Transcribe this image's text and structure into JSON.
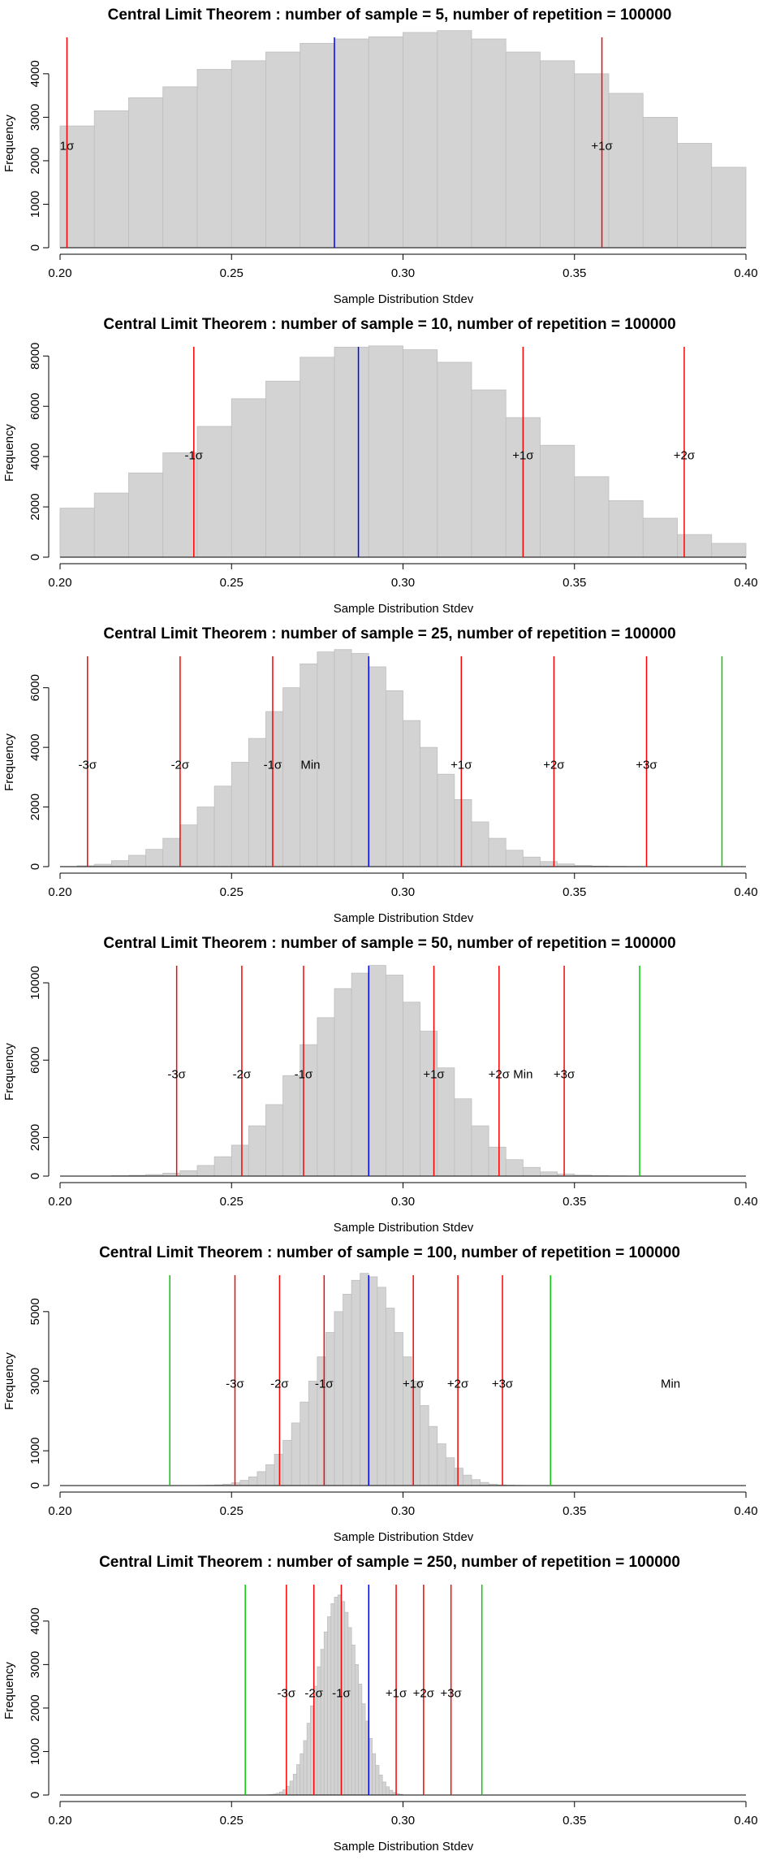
{
  "chart_data": [
    {
      "type": "bar",
      "title": "Central Limit Theorem : number of sample = 5, number of repetition = 100000",
      "xlabel": "Sample Distribution Stdev",
      "ylabel": "Frequency",
      "xlim": [
        0.2,
        0.4
      ],
      "ylim": [
        0,
        4800
      ],
      "x_ticks": [
        "0.20",
        "0.25",
        "0.30",
        "0.35",
        "0.40"
      ],
      "y_ticks": [
        "0",
        "1000",
        "2000",
        "3000",
        "4000"
      ],
      "bin_start": 0.2,
      "bin_width": 0.01,
      "values": [
        2800,
        3150,
        3450,
        3700,
        4100,
        4300,
        4500,
        4700,
        4800,
        4850,
        4950,
        5000,
        4800,
        4500,
        4300,
        4000,
        3550,
        3000,
        2400,
        1850
      ],
      "mean": 0.28,
      "sigma_lines": [
        {
          "x": 0.202,
          "label": "1σ"
        },
        {
          "x": 0.358,
          "label": "+1σ"
        }
      ],
      "limit_lines": [],
      "min_label": null,
      "colors": {
        "bars": "#d3d3d3",
        "bar_border": "#bebebe",
        "sigma": "#ff0000",
        "mean": "#0000ff",
        "limit": "#00cc00"
      }
    },
    {
      "type": "bar",
      "title": "Central Limit Theorem : number of sample = 10, number of repetition = 100000",
      "xlabel": "Sample Distribution Stdev",
      "ylabel": "Frequency",
      "xlim": [
        0.2,
        0.4
      ],
      "ylim": [
        0,
        8300
      ],
      "x_ticks": [
        "0.20",
        "0.25",
        "0.30",
        "0.35",
        "0.40"
      ],
      "y_ticks": [
        "0",
        "2000",
        "4000",
        "6000",
        "8000"
      ],
      "bin_start": 0.2,
      "bin_width": 0.01,
      "values": [
        1950,
        2550,
        3350,
        4150,
        5200,
        6300,
        7000,
        7950,
        8350,
        8400,
        8250,
        7750,
        6650,
        5550,
        4450,
        3200,
        2250,
        1550,
        900,
        550
      ],
      "mean": 0.287,
      "sigma_lines": [
        {
          "x": 0.239,
          "label": "-1σ"
        },
        {
          "x": 0.335,
          "label": "+1σ"
        },
        {
          "x": 0.382,
          "label": "+2σ"
        }
      ],
      "limit_lines": [],
      "min_label": null,
      "colors": {
        "bars": "#d3d3d3",
        "bar_border": "#bebebe",
        "sigma": "#ff0000",
        "mean": "#0000ff",
        "limit": "#00cc00"
      }
    },
    {
      "type": "bar",
      "title": "Central Limit Theorem : number of sample = 25, number of repetition = 100000",
      "xlabel": "Sample Distribution Stdev",
      "ylabel": "Frequency",
      "xlim": [
        0.2,
        0.4
      ],
      "ylim": [
        0,
        7000
      ],
      "x_ticks": [
        "0.20",
        "0.25",
        "0.30",
        "0.35",
        "0.40"
      ],
      "y_ticks": [
        "0",
        "2000",
        "4000",
        "6000"
      ],
      "bin_start": 0.2,
      "bin_width": 0.005,
      "values": [
        5,
        30,
        80,
        200,
        380,
        580,
        950,
        1400,
        2000,
        2700,
        3500,
        4300,
        5200,
        6000,
        6800,
        7200,
        7400,
        7150,
        6700,
        5900,
        4900,
        4000,
        3100,
        2250,
        1500,
        950,
        550,
        320,
        170,
        90,
        40,
        20,
        10,
        5,
        2,
        1,
        0,
        0,
        0,
        0
      ],
      "mean": 0.29,
      "sigma_lines": [
        {
          "x": 0.208,
          "label": "-3σ"
        },
        {
          "x": 0.235,
          "label": "-2σ"
        },
        {
          "x": 0.262,
          "label": "-1σ"
        },
        {
          "x": 0.317,
          "label": "+1σ"
        },
        {
          "x": 0.344,
          "label": "+2σ"
        },
        {
          "x": 0.371,
          "label": "+3σ"
        }
      ],
      "limit_lines": [
        0.393
      ],
      "min_label": {
        "x": 0.273,
        "label": "Min"
      },
      "colors": {
        "bars": "#d3d3d3",
        "bar_border": "#bebebe",
        "sigma": "#ff0000",
        "mean": "#0000ff",
        "limit": "#00cc00"
      }
    },
    {
      "type": "bar",
      "title": "Central Limit Theorem : number of sample = 50, number of repetition = 100000",
      "xlabel": "Sample Distribution Stdev",
      "ylabel": "Frequency",
      "xlim": [
        0.2,
        0.4
      ],
      "ylim": [
        0,
        10800
      ],
      "x_ticks": [
        "0.20",
        "0.25",
        "0.30",
        "0.35",
        "0.40"
      ],
      "y_ticks": [
        "0",
        "2000",
        "6000",
        "10000"
      ],
      "bin_start": 0.2,
      "bin_width": 0.005,
      "values": [
        0,
        0,
        5,
        20,
        40,
        80,
        150,
        280,
        550,
        1000,
        1600,
        2600,
        3700,
        5200,
        6800,
        8200,
        9700,
        10500,
        10900,
        10400,
        9000,
        7500,
        5600,
        4000,
        2600,
        1500,
        850,
        450,
        220,
        110,
        50,
        20,
        10,
        0,
        0,
        0,
        0,
        0,
        0,
        0
      ],
      "mean": 0.29,
      "sigma_lines": [
        {
          "x": 0.234,
          "label": "-3σ"
        },
        {
          "x": 0.253,
          "label": "-2σ"
        },
        {
          "x": 0.271,
          "label": "-1σ"
        },
        {
          "x": 0.309,
          "label": "+1σ"
        },
        {
          "x": 0.328,
          "label": "+2σ"
        },
        {
          "x": 0.347,
          "label": "+3σ"
        }
      ],
      "limit_lines": [
        0.369
      ],
      "min_label": {
        "x": 0.335,
        "label": "Min"
      },
      "colors": {
        "bars": "#d3d3d3",
        "bar_border": "#bebebe",
        "sigma": "#ff0000",
        "mean": "#0000ff",
        "limit": "#00cc00"
      }
    },
    {
      "type": "bar",
      "title": "Central Limit Theorem : number of sample = 100, number of repetition = 100000",
      "xlabel": "Sample Distribution Stdev",
      "ylabel": "Frequency",
      "xlim": [
        0.2,
        0.4
      ],
      "ylim": [
        0,
        6000
      ],
      "x_ticks": [
        "0.20",
        "0.25",
        "0.30",
        "0.35",
        "0.40"
      ],
      "y_ticks": [
        "0",
        "1000",
        "3000",
        "5000"
      ],
      "bin_start": 0.24,
      "bin_width": 0.0025,
      "values": [
        5,
        10,
        20,
        40,
        80,
        150,
        250,
        400,
        600,
        900,
        1300,
        1800,
        2400,
        3000,
        3700,
        4400,
        5000,
        5500,
        5900,
        6100,
        6000,
        5700,
        5100,
        4400,
        3700,
        3000,
        2300,
        1700,
        1200,
        800,
        500,
        300,
        170,
        90,
        40,
        20,
        10,
        5
      ],
      "mean": 0.29,
      "sigma_lines": [
        {
          "x": 0.251,
          "label": "-3σ"
        },
        {
          "x": 0.264,
          "label": "-2σ"
        },
        {
          "x": 0.277,
          "label": "-1σ"
        },
        {
          "x": 0.303,
          "label": "+1σ"
        },
        {
          "x": 0.316,
          "label": "+2σ"
        },
        {
          "x": 0.329,
          "label": "+3σ"
        }
      ],
      "limit_lines": [
        0.232,
        0.343
      ],
      "min_label": {
        "x": 0.378,
        "label": "Min"
      },
      "colors": {
        "bars": "#d3d3d3",
        "bar_border": "#bebebe",
        "sigma": "#ff0000",
        "mean": "#0000ff",
        "limit": "#00cc00"
      }
    },
    {
      "type": "bar",
      "title": "Central Limit Theorem : number of sample = 250, number of repetition = 100000",
      "xlabel": "Sample Distribution Stdev",
      "ylabel": "Frequency",
      "xlim": [
        0.2,
        0.4
      ],
      "ylim": [
        0,
        4800
      ],
      "x_ticks": [
        "0.20",
        "0.25",
        "0.30",
        "0.35",
        "0.40"
      ],
      "y_ticks": [
        "0",
        "1000",
        "2000",
        "3000",
        "4000"
      ],
      "bin_start": 0.26,
      "bin_width": 0.001,
      "values": [
        5,
        10,
        20,
        40,
        70,
        120,
        200,
        320,
        480,
        700,
        950,
        1250,
        1650,
        2050,
        2500,
        2950,
        3350,
        3750,
        4100,
        4400,
        4550,
        4600,
        4450,
        4200,
        3850,
        3450,
        3000,
        2550,
        2100,
        1700,
        1300,
        950,
        680,
        460,
        300,
        190,
        110,
        60,
        30,
        15
      ],
      "mean": 0.29,
      "sigma_lines": [
        {
          "x": 0.266,
          "label": "-3σ"
        },
        {
          "x": 0.274,
          "label": "-2σ"
        },
        {
          "x": 0.282,
          "label": "-1σ"
        },
        {
          "x": 0.298,
          "label": "+1σ"
        },
        {
          "x": 0.306,
          "label": "+2σ"
        },
        {
          "x": 0.314,
          "label": "+3σ"
        }
      ],
      "limit_lines": [
        0.254,
        0.323
      ],
      "min_label": null,
      "colors": {
        "bars": "#d3d3d3",
        "bar_border": "#bebebe",
        "sigma": "#ff0000",
        "mean": "#0000ff",
        "limit": "#00cc00"
      }
    }
  ]
}
